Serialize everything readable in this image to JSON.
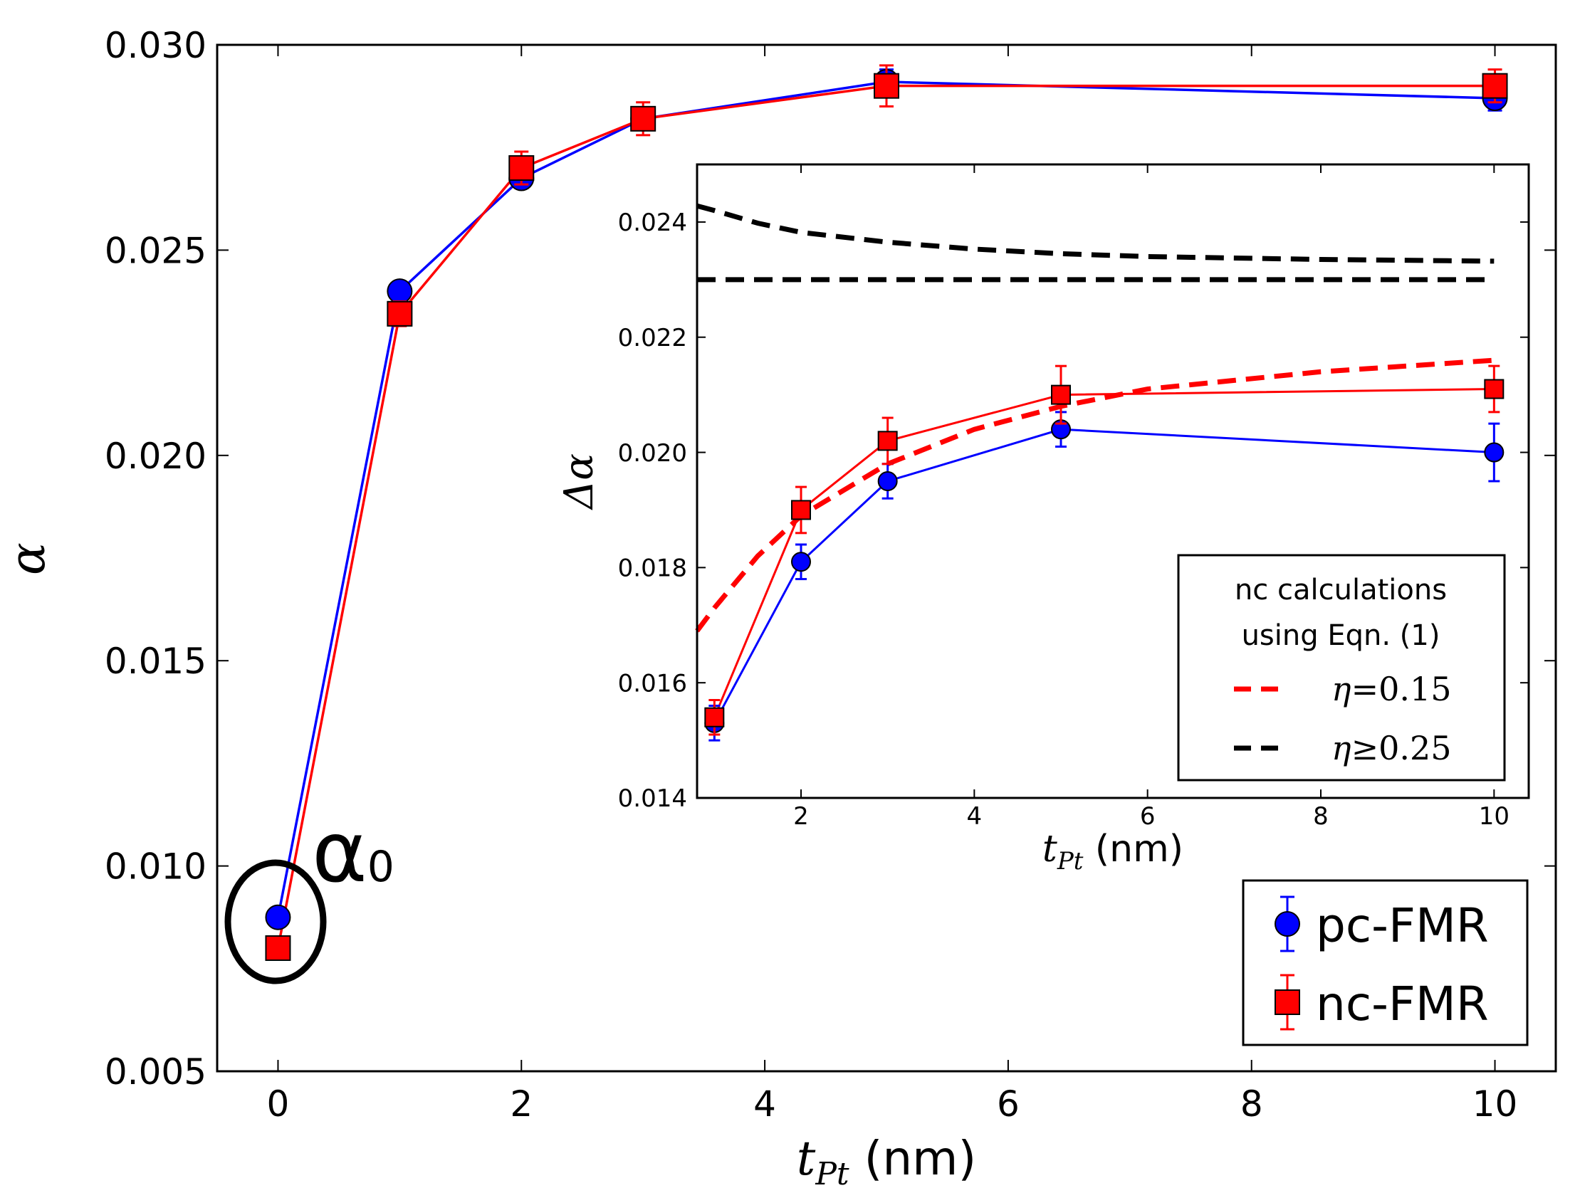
{
  "chart_data": [
    {
      "id": "main",
      "type": "line",
      "xlabel": {
        "main": "t",
        "sub": "Pt",
        "unit": " (nm)"
      },
      "ylabel": "α",
      "xlim": [
        -0.5,
        10.5
      ],
      "ylim": [
        0.005,
        0.03
      ],
      "xticks": [
        0,
        2,
        4,
        6,
        8,
        10
      ],
      "xtick_labels": [
        "0",
        "2",
        "4",
        "6",
        "8",
        "10"
      ],
      "yticks": [
        0.005,
        0.01,
        0.015,
        0.02,
        0.025,
        0.03
      ],
      "ytick_labels": [
        "0.005",
        "0.010",
        "0.015",
        "0.020",
        "0.025",
        "0.030"
      ],
      "series": [
        {
          "name": "pc-FMR",
          "color": "#0000ff",
          "marker": "circle",
          "x": [
            0,
            1,
            2,
            3,
            5,
            10
          ],
          "y": [
            0.00875,
            0.024,
            0.02675,
            0.0282,
            0.0291,
            0.0287
          ],
          "err": [
            0.0001,
            0.0002,
            0.0002,
            0.0002,
            0.0003,
            0.0003
          ]
        },
        {
          "name": "nc-FMR",
          "color": "#ff0000",
          "marker": "square",
          "x": [
            0,
            1,
            2,
            3,
            5,
            10
          ],
          "y": [
            0.008,
            0.02345,
            0.027,
            0.0282,
            0.029,
            0.029
          ],
          "err": [
            0.0001,
            0.0003,
            0.0004,
            0.0004,
            0.0005,
            0.0004
          ]
        }
      ],
      "legend": {
        "position": "bottom-right",
        "entries": [
          "pc-FMR",
          "nc-FMR"
        ]
      },
      "annotation": {
        "text": "α",
        "sub": "0",
        "target_x": 0,
        "target_y": 0.0083
      }
    },
    {
      "id": "inset",
      "type": "line",
      "xlabel": {
        "main": "t",
        "sub": "Pt",
        "unit": " (nm)"
      },
      "ylabel": "Δα",
      "xlim": [
        0.8,
        10.4
      ],
      "ylim": [
        0.014,
        0.025
      ],
      "xticks": [
        2,
        4,
        6,
        8,
        10
      ],
      "xtick_labels": [
        "2",
        "4",
        "6",
        "8",
        "10"
      ],
      "yticks": [
        0.014,
        0.016,
        0.018,
        0.02,
        0.022,
        0.024
      ],
      "ytick_labels": [
        "0.014",
        "0.016",
        "0.018",
        "0.020",
        "0.022",
        "0.024"
      ],
      "series": [
        {
          "name": "pc-FMR",
          "color": "#0000ff",
          "marker": "circle",
          "x": [
            1,
            2,
            3,
            5,
            10
          ],
          "y": [
            0.0153,
            0.0181,
            0.0195,
            0.0204,
            0.02
          ],
          "err": [
            0.0003,
            0.0003,
            0.0003,
            0.0003,
            0.0005
          ]
        },
        {
          "name": "nc-FMR",
          "color": "#ff0000",
          "marker": "square",
          "x": [
            1,
            2,
            3,
            5,
            10
          ],
          "y": [
            0.0154,
            0.019,
            0.0202,
            0.021,
            0.0211
          ],
          "err": [
            0.0003,
            0.0004,
            0.0004,
            0.0005,
            0.0004
          ]
        }
      ],
      "curves": [
        {
          "name": "η=0.15",
          "color": "#ff0000",
          "style": "dashed",
          "x": [
            0.8,
            1.0,
            1.5,
            2.0,
            3.0,
            4.0,
            5.0,
            6.0,
            8.0,
            10.0
          ],
          "y": [
            0.0169,
            0.0173,
            0.0182,
            0.0189,
            0.0198,
            0.0204,
            0.0208,
            0.0211,
            0.0214,
            0.0216
          ]
        },
        {
          "name": "η≥0.25",
          "color": "#000000",
          "style": "dashed",
          "x": [
            0.8,
            1.0,
            1.5,
            2.0,
            3.0,
            4.0,
            5.0,
            6.0,
            8.0,
            10.0
          ],
          "y": [
            0.02428,
            0.0242,
            0.02398,
            0.02382,
            0.02365,
            0.02353,
            0.02345,
            0.0234,
            0.02335,
            0.02332
          ]
        },
        {
          "name": "η≥0.25 (constant)",
          "color": "#000000",
          "style": "dashed",
          "x": [
            0.8,
            10.0
          ],
          "y": [
            0.023,
            0.023
          ]
        }
      ],
      "legend": {
        "position": "bottom-right",
        "title_lines": [
          "nc calculations",
          "using Eqn. (1)"
        ],
        "entries": [
          {
            "symbol": "η",
            "rel": "=",
            "value": "0.15",
            "color": "#ff0000"
          },
          {
            "symbol": "η",
            "rel": "≥",
            "value": "0.25",
            "color": "#000000"
          }
        ]
      }
    }
  ]
}
